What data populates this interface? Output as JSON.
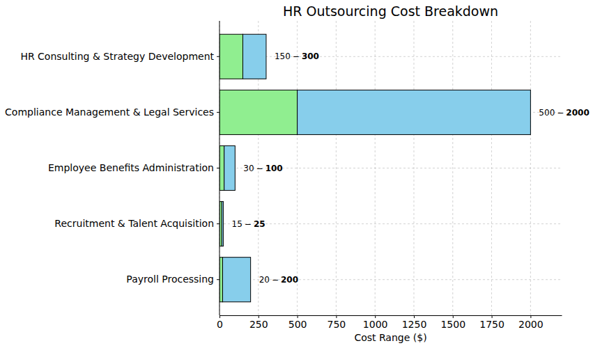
{
  "chart_data": {
    "type": "bar",
    "orientation": "horizontal",
    "title": "HR Outsourcing Cost Breakdown",
    "x_label": "Cost Range ($)",
    "categories": [
      "Payroll Processing",
      "Recruitment & Talent Acquisition",
      "Employee Benefits Administration",
      "Compliance Management & Legal Services",
      "HR Consulting & Strategy Development"
    ],
    "series": [
      {
        "color": "#90ee90",
        "values": [
          20,
          15,
          30,
          500,
          150
        ]
      },
      {
        "color": "#87ceeb",
        "values": [
          200,
          25,
          100,
          2000,
          300
        ]
      }
    ],
    "xlim": [
      0,
      2200
    ],
    "xticks": [
      0,
      250,
      500,
      750,
      1000,
      1250,
      1500,
      1750,
      2000
    ],
    "grid": true,
    "data_labels": true,
    "label_separator": "−"
  }
}
